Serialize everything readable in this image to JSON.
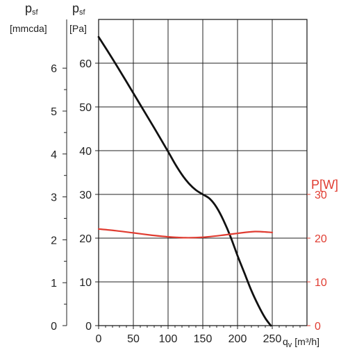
{
  "chart_data": {
    "type": "line",
    "title": "",
    "grid": true,
    "xlabel": {
      "symbol": "q",
      "subscript": "v",
      "unit": "[m³/h]"
    },
    "xlim": [
      0,
      300
    ],
    "x_ticks": [
      "0",
      "50",
      "100",
      "150",
      "200",
      "250"
    ],
    "y_axes": [
      {
        "id": "mmcda",
        "symbol": "p",
        "subscript": "sf",
        "unit": "[mmcda]",
        "ticks": [
          "0",
          "1",
          "2",
          "3",
          "4",
          "5",
          "6"
        ],
        "color": "#222222"
      },
      {
        "id": "pa",
        "symbol": "p",
        "subscript": "sf",
        "unit": "[Pa]",
        "ticks": [
          "0",
          "10",
          "20",
          "30",
          "40",
          "50",
          "60"
        ],
        "ylim": [
          0,
          70
        ],
        "color": "#222222"
      },
      {
        "id": "power",
        "label": "P[W]",
        "ticks": [
          "0",
          "10",
          "20",
          "30"
        ],
        "ylim": [
          0,
          70
        ],
        "color": "#e03c31"
      }
    ],
    "series": [
      {
        "axis": "pa",
        "color": "#111111",
        "x": [
          0,
          20,
          40,
          60,
          80,
          100,
          110,
          120,
          130,
          140,
          150,
          160,
          170,
          180,
          190,
          200,
          210,
          220,
          230,
          240,
          248
        ],
        "y": [
          66,
          61,
          55.8,
          50.5,
          45.2,
          39.8,
          37,
          34.5,
          32.5,
          31,
          30,
          29,
          27,
          24,
          20.3,
          16,
          12,
          8,
          4.6,
          1.7,
          0
        ]
      },
      {
        "axis": "power",
        "color": "#e03c31",
        "x": [
          0,
          25,
          50,
          75,
          100,
          125,
          150,
          175,
          200,
          225,
          250
        ],
        "y": [
          22.1,
          21.7,
          21.2,
          20.7,
          20.3,
          20.1,
          20.2,
          20.6,
          21.1,
          21.5,
          21.3
        ]
      }
    ]
  }
}
